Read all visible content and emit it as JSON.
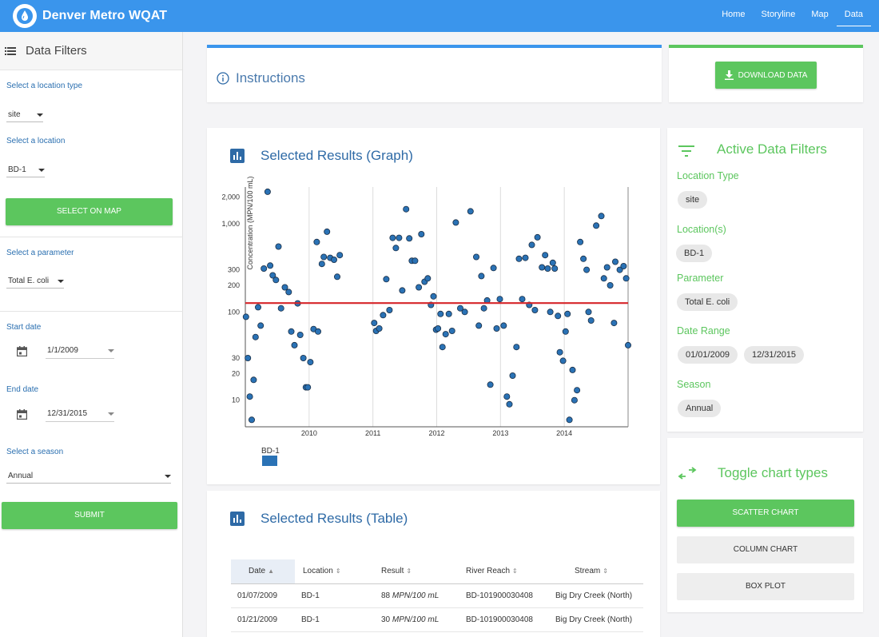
{
  "app": {
    "title": "Denver Metro WQAT"
  },
  "nav": {
    "items": [
      "Home",
      "Storyline",
      "Map",
      "Data"
    ],
    "active": "Data"
  },
  "sidebar": {
    "title": "Data Filters",
    "location_type_label": "Select a location type",
    "location_type_value": "site",
    "location_label": "Select a location",
    "location_value": "BD-1",
    "select_on_map_label": "SELECT ON MAP",
    "parameter_label": "Select a parameter",
    "parameter_value": "Total E. coli",
    "start_label": "Start date",
    "start_value": "1/1/2009",
    "end_label": "End date",
    "end_value": "12/31/2015",
    "season_label": "Select a season",
    "season_value": "Annual",
    "submit_label": "SUBMIT"
  },
  "instructions": {
    "title": "Instructions"
  },
  "download": {
    "label": "DOWNLOAD DATA"
  },
  "graph_card": {
    "title": "Selected Results (Graph)"
  },
  "table_card": {
    "title": "Selected Results (Table)",
    "columns": [
      "Date",
      "Location",
      "Result",
      "River Reach",
      "Stream"
    ],
    "rows": [
      {
        "date": "01/07/2009",
        "location": "BD-1",
        "result_num": "88",
        "result_unit": "MPN/100 mL",
        "reach": "BD-101900030408",
        "stream": "Big Dry Creek (North)"
      },
      {
        "date": "01/21/2009",
        "location": "BD-1",
        "result_num": "30",
        "result_unit": "MPN/100 mL",
        "reach": "BD-101900030408",
        "stream": "Big Dry Creek (North)"
      }
    ]
  },
  "active_filters": {
    "title": "Active Data Filters",
    "location_type_label": "Location Type",
    "location_type": "site",
    "locations_label": "Location(s)",
    "location": "BD-1",
    "parameter_label": "Parameter",
    "parameter": "Total E. coli",
    "date_range_label": "Date Range",
    "date_start": "01/01/2009",
    "date_end": "12/31/2015",
    "season_label": "Season",
    "season": "Annual"
  },
  "toggle": {
    "title": "Toggle chart types",
    "scatter": "SCATTER CHART",
    "column": "COLUMN CHART",
    "box": "BOX PLOT"
  },
  "colors": {
    "topbar": "#3a95ec",
    "green": "#5cc65e",
    "point": "#2a72b5",
    "standard_line": "#d6262a"
  },
  "chart_data": {
    "type": "scatter",
    "title": "",
    "xlabel": "",
    "ylabel": "Concentration (MPN/100 mL)",
    "y_scale": "log",
    "y_ticks": [
      10,
      20,
      30,
      100,
      200,
      300,
      1000,
      2000
    ],
    "y_tick_labels": [
      "10",
      "20",
      "30",
      "100",
      "200",
      "300",
      "1,000",
      "2,000"
    ],
    "ylim": [
      5,
      2600
    ],
    "xlim": [
      2009.0,
      2015.0
    ],
    "x_ticks": [
      2010,
      2011,
      2012,
      2013,
      2014
    ],
    "x_tick_labels": [
      "2010",
      "2011",
      "2012",
      "2013",
      "2014"
    ],
    "grid": "vertical",
    "standard_value": 126,
    "legend": [
      {
        "name": "BD-1",
        "color": "#2a72b5"
      }
    ],
    "series": [
      {
        "name": "BD-1",
        "points": [
          [
            2009.01,
            88
          ],
          [
            2009.04,
            30
          ],
          [
            2009.07,
            11
          ],
          [
            2009.1,
            6
          ],
          [
            2009.13,
            17
          ],
          [
            2009.16,
            52
          ],
          [
            2009.2,
            113
          ],
          [
            2009.24,
            70
          ],
          [
            2009.29,
            310
          ],
          [
            2009.35,
            2300
          ],
          [
            2009.39,
            335
          ],
          [
            2009.43,
            260
          ],
          [
            2009.48,
            230
          ],
          [
            2009.52,
            550
          ],
          [
            2009.56,
            110
          ],
          [
            2009.62,
            190
          ],
          [
            2009.68,
            168
          ],
          [
            2009.72,
            60
          ],
          [
            2009.77,
            42
          ],
          [
            2009.82,
            125
          ],
          [
            2009.86,
            55
          ],
          [
            2009.91,
            30
          ],
          [
            2009.95,
            14
          ],
          [
            2009.98,
            14
          ],
          [
            2010.02,
            27
          ],
          [
            2010.07,
            64
          ],
          [
            2010.12,
            620
          ],
          [
            2010.14,
            60
          ],
          [
            2010.2,
            350
          ],
          [
            2010.23,
            420
          ],
          [
            2010.28,
            810
          ],
          [
            2010.33,
            410
          ],
          [
            2010.39,
            390
          ],
          [
            2010.44,
            250
          ],
          [
            2010.48,
            440
          ],
          [
            2011.02,
            75
          ],
          [
            2011.05,
            61
          ],
          [
            2011.1,
            65
          ],
          [
            2011.16,
            92
          ],
          [
            2011.21,
            235
          ],
          [
            2011.26,
            105
          ],
          [
            2011.31,
            690
          ],
          [
            2011.36,
            530
          ],
          [
            2011.41,
            690
          ],
          [
            2011.46,
            175
          ],
          [
            2011.52,
            1460
          ],
          [
            2011.57,
            680
          ],
          [
            2011.61,
            380
          ],
          [
            2011.66,
            380
          ],
          [
            2011.72,
            190
          ],
          [
            2011.76,
            760
          ],
          [
            2011.81,
            220
          ],
          [
            2011.86,
            240
          ],
          [
            2011.91,
            120
          ],
          [
            2011.95,
            150
          ],
          [
            2011.99,
            63
          ],
          [
            2012.02,
            65
          ],
          [
            2012.06,
            95
          ],
          [
            2012.09,
            40
          ],
          [
            2012.14,
            56
          ],
          [
            2012.19,
            95
          ],
          [
            2012.24,
            61
          ],
          [
            2012.3,
            1030
          ],
          [
            2012.37,
            110
          ],
          [
            2012.44,
            100
          ],
          [
            2012.53,
            1380
          ],
          [
            2012.62,
            420
          ],
          [
            2012.66,
            70
          ],
          [
            2012.7,
            255
          ],
          [
            2012.74,
            110
          ],
          [
            2012.79,
            135
          ],
          [
            2012.84,
            15
          ],
          [
            2012.89,
            315
          ],
          [
            2012.94,
            65
          ],
          [
            2012.99,
            140
          ],
          [
            2013.05,
            70
          ],
          [
            2013.1,
            11
          ],
          [
            2013.14,
            9
          ],
          [
            2013.19,
            19
          ],
          [
            2013.25,
            40
          ],
          [
            2013.29,
            400
          ],
          [
            2013.34,
            140
          ],
          [
            2013.39,
            410
          ],
          [
            2013.45,
            120
          ],
          [
            2013.49,
            575
          ],
          [
            2013.54,
            105
          ],
          [
            2013.58,
            700
          ],
          [
            2013.65,
            320
          ],
          [
            2013.7,
            440
          ],
          [
            2013.74,
            310
          ],
          [
            2013.78,
            100
          ],
          [
            2013.82,
            360
          ],
          [
            2013.85,
            310
          ],
          [
            2013.9,
            90
          ],
          [
            2013.93,
            35
          ],
          [
            2013.98,
            28
          ],
          [
            2014.02,
            60
          ],
          [
            2014.05,
            95
          ],
          [
            2014.08,
            6
          ],
          [
            2014.13,
            22
          ],
          [
            2014.16,
            10
          ],
          [
            2014.2,
            13
          ],
          [
            2014.25,
            620
          ],
          [
            2014.3,
            400
          ],
          [
            2014.35,
            300
          ],
          [
            2014.38,
            100
          ],
          [
            2014.42,
            80
          ],
          [
            2014.5,
            950
          ],
          [
            2014.58,
            1220
          ],
          [
            2014.62,
            240
          ],
          [
            2014.67,
            320
          ],
          [
            2014.72,
            200
          ],
          [
            2014.78,
            75
          ],
          [
            2014.8,
            370
          ],
          [
            2014.87,
            300
          ],
          [
            2014.93,
            330
          ],
          [
            2014.97,
            240
          ],
          [
            2015.0,
            42
          ]
        ]
      }
    ]
  }
}
